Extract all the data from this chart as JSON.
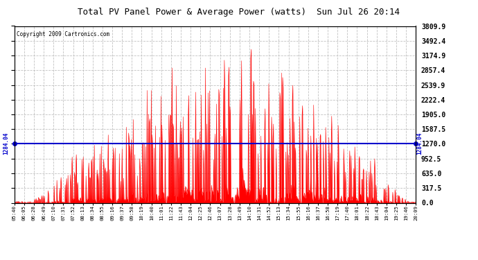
{
  "title": "Total PV Panel Power & Average Power (watts)  Sun Jul 26 20:14",
  "copyright": "Copyright 2009 Cartronics.com",
  "y_right_labels": [
    0.0,
    317.5,
    635.0,
    952.5,
    1270.0,
    1587.5,
    1905.0,
    2222.4,
    2539.9,
    2857.4,
    3174.9,
    3492.4,
    3809.9
  ],
  "avg_value": 1284.04,
  "avg_label": "1284.04",
  "y_max": 3809.9,
  "fill_color": "#FF0000",
  "line_color": "#FF0000",
  "avg_line_color": "#0000CC",
  "background_color": "#FFFFFF",
  "grid_color": "#BBBBBB",
  "title_fontsize": 9,
  "x_ticks": [
    "05:40",
    "06:05",
    "06:28",
    "06:49",
    "07:10",
    "07:31",
    "07:52",
    "08:13",
    "08:34",
    "08:55",
    "09:16",
    "09:37",
    "09:58",
    "10:19",
    "10:40",
    "11:01",
    "11:22",
    "11:43",
    "12:04",
    "12:25",
    "12:46",
    "13:07",
    "13:28",
    "13:49",
    "14:10",
    "14:31",
    "14:52",
    "15:13",
    "15:34",
    "15:55",
    "16:16",
    "16:37",
    "16:58",
    "17:19",
    "17:40",
    "18:01",
    "18:22",
    "18:43",
    "19:04",
    "19:25",
    "19:46",
    "20:09"
  ]
}
